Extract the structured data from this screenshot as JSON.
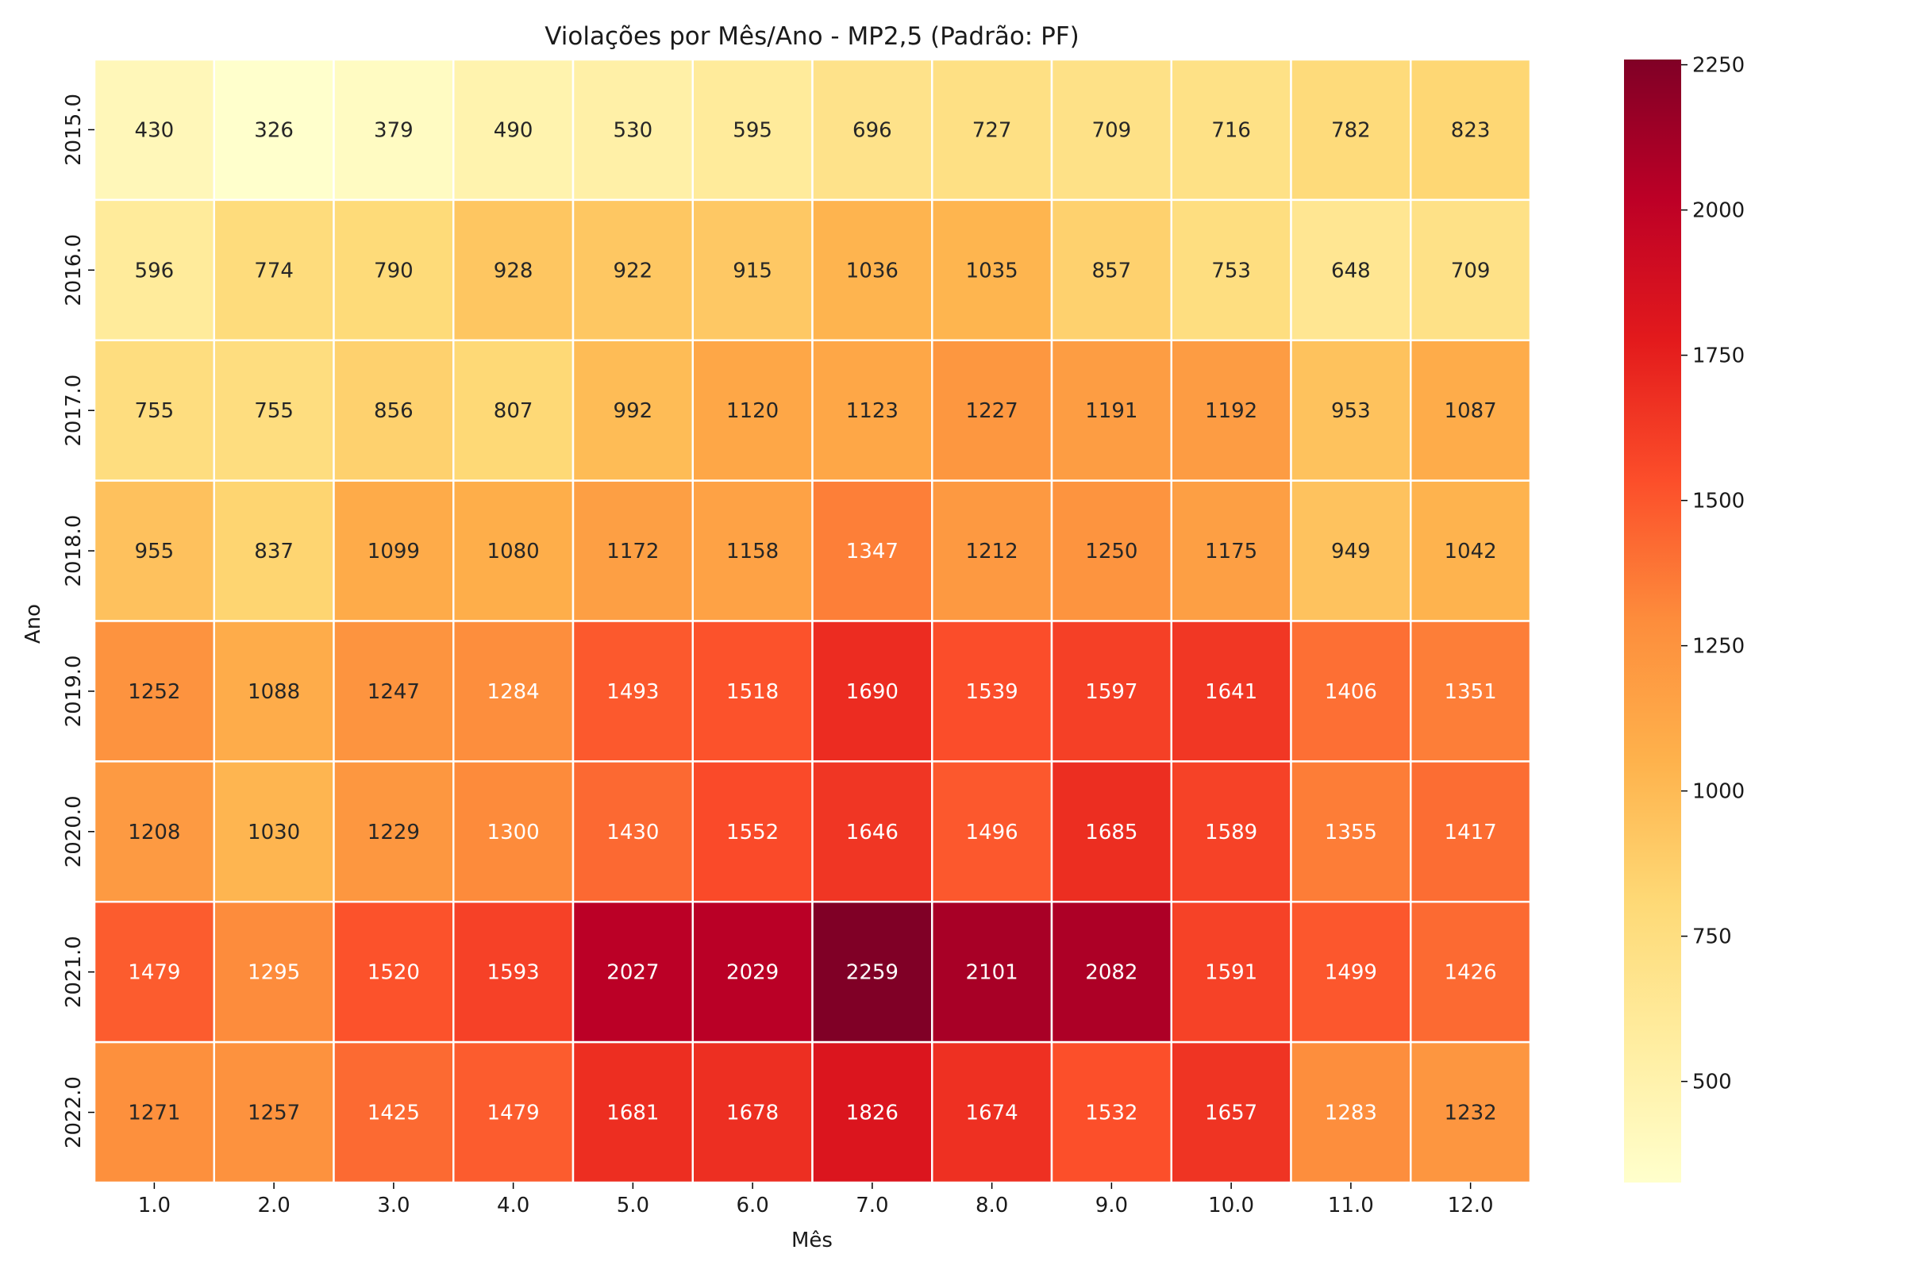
{
  "chart_data": {
    "type": "heatmap",
    "title": "Violações por Mês/Ano - MP2,5 (Padrão: PF)",
    "xlabel": "Mês",
    "ylabel": "Ano",
    "x_categories": [
      "1.0",
      "2.0",
      "3.0",
      "4.0",
      "5.0",
      "6.0",
      "7.0",
      "8.0",
      "9.0",
      "10.0",
      "11.0",
      "12.0"
    ],
    "y_categories": [
      "2015.0",
      "2016.0",
      "2017.0",
      "2018.0",
      "2019.0",
      "2020.0",
      "2021.0",
      "2022.0"
    ],
    "values": [
      [
        430,
        326,
        379,
        490,
        530,
        595,
        696,
        727,
        709,
        716,
        782,
        823
      ],
      [
        596,
        774,
        790,
        928,
        922,
        915,
        1036,
        1035,
        857,
        753,
        648,
        709
      ],
      [
        755,
        755,
        856,
        807,
        992,
        1120,
        1123,
        1227,
        1191,
        1192,
        953,
        1087
      ],
      [
        955,
        837,
        1099,
        1080,
        1172,
        1158,
        1347,
        1212,
        1250,
        1175,
        949,
        1042
      ],
      [
        1252,
        1088,
        1247,
        1284,
        1493,
        1518,
        1690,
        1539,
        1597,
        1641,
        1406,
        1351
      ],
      [
        1208,
        1030,
        1229,
        1300,
        1430,
        1552,
        1646,
        1496,
        1685,
        1589,
        1355,
        1417
      ],
      [
        1479,
        1295,
        1520,
        1593,
        2027,
        2029,
        2259,
        2101,
        2082,
        1591,
        1499,
        1426
      ],
      [
        1271,
        1257,
        1425,
        1479,
        1681,
        1678,
        1826,
        1674,
        1532,
        1657,
        1283,
        1232
      ]
    ],
    "colorscale": "YlOrRd",
    "vmin": 326,
    "vmax": 2259,
    "colorbar_ticks": [
      "500",
      "750",
      "1000",
      "1250",
      "1500",
      "1750",
      "2000",
      "2250"
    ]
  }
}
